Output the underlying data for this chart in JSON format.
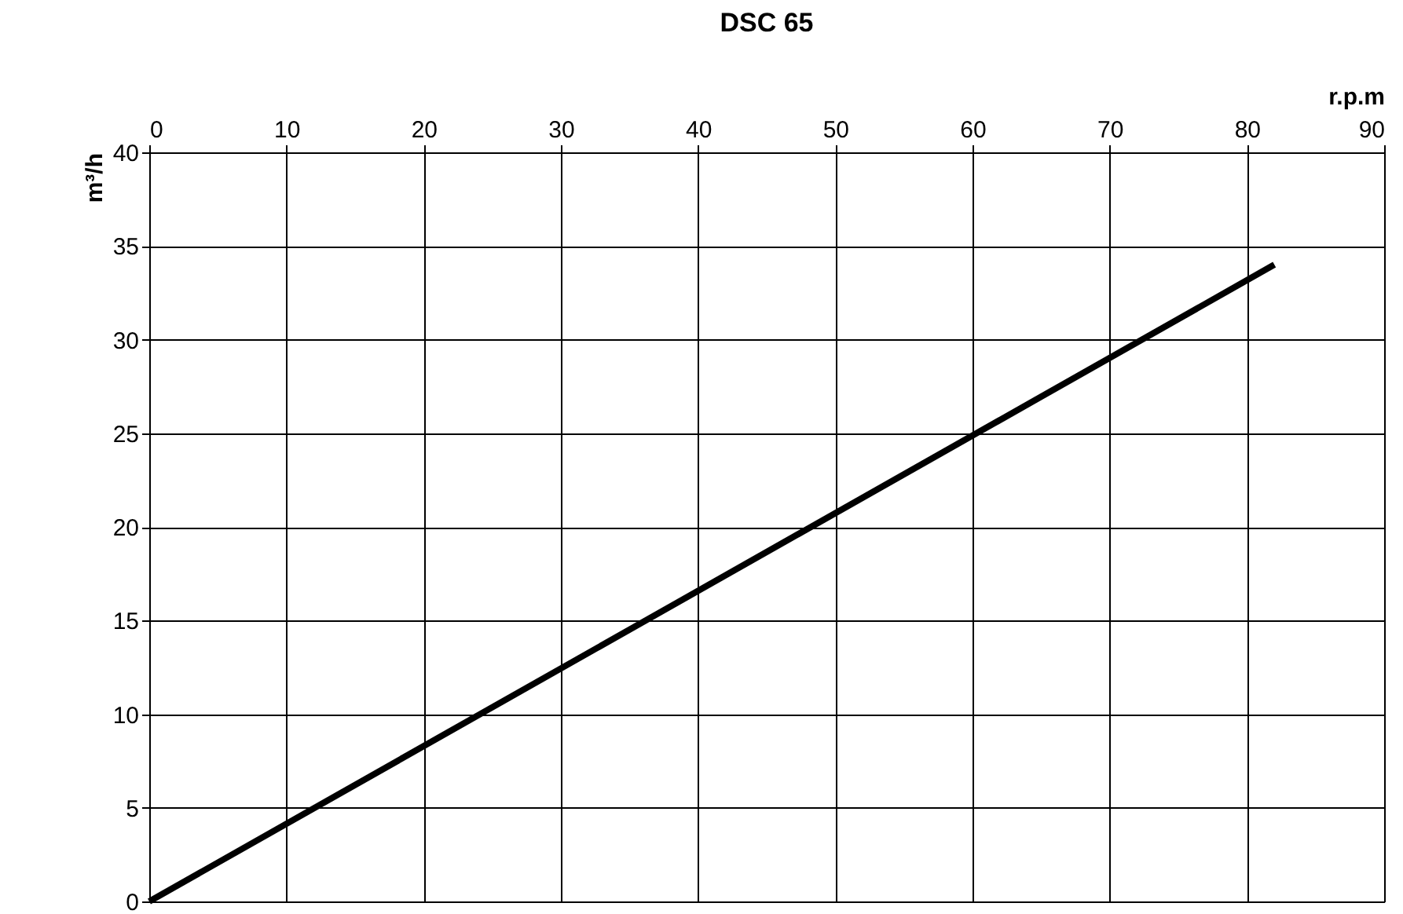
{
  "chart_data": {
    "type": "line",
    "title": "DSC 65",
    "xlabel": "r.p.m",
    "ylabel": "m³/h",
    "x": [
      0,
      82
    ],
    "series": [
      {
        "color": "#000000",
        "values": [
          0,
          34
        ]
      }
    ],
    "xlim": [
      0,
      90
    ],
    "xticks": [
      0,
      10,
      20,
      30,
      40,
      50,
      60,
      70,
      80,
      90
    ],
    "ylim": [
      0,
      40
    ],
    "yticks": [
      0,
      5,
      10,
      15,
      20,
      25,
      30,
      35,
      40
    ],
    "grid": true,
    "legend": false,
    "marker": "none",
    "line_style": "solid"
  }
}
